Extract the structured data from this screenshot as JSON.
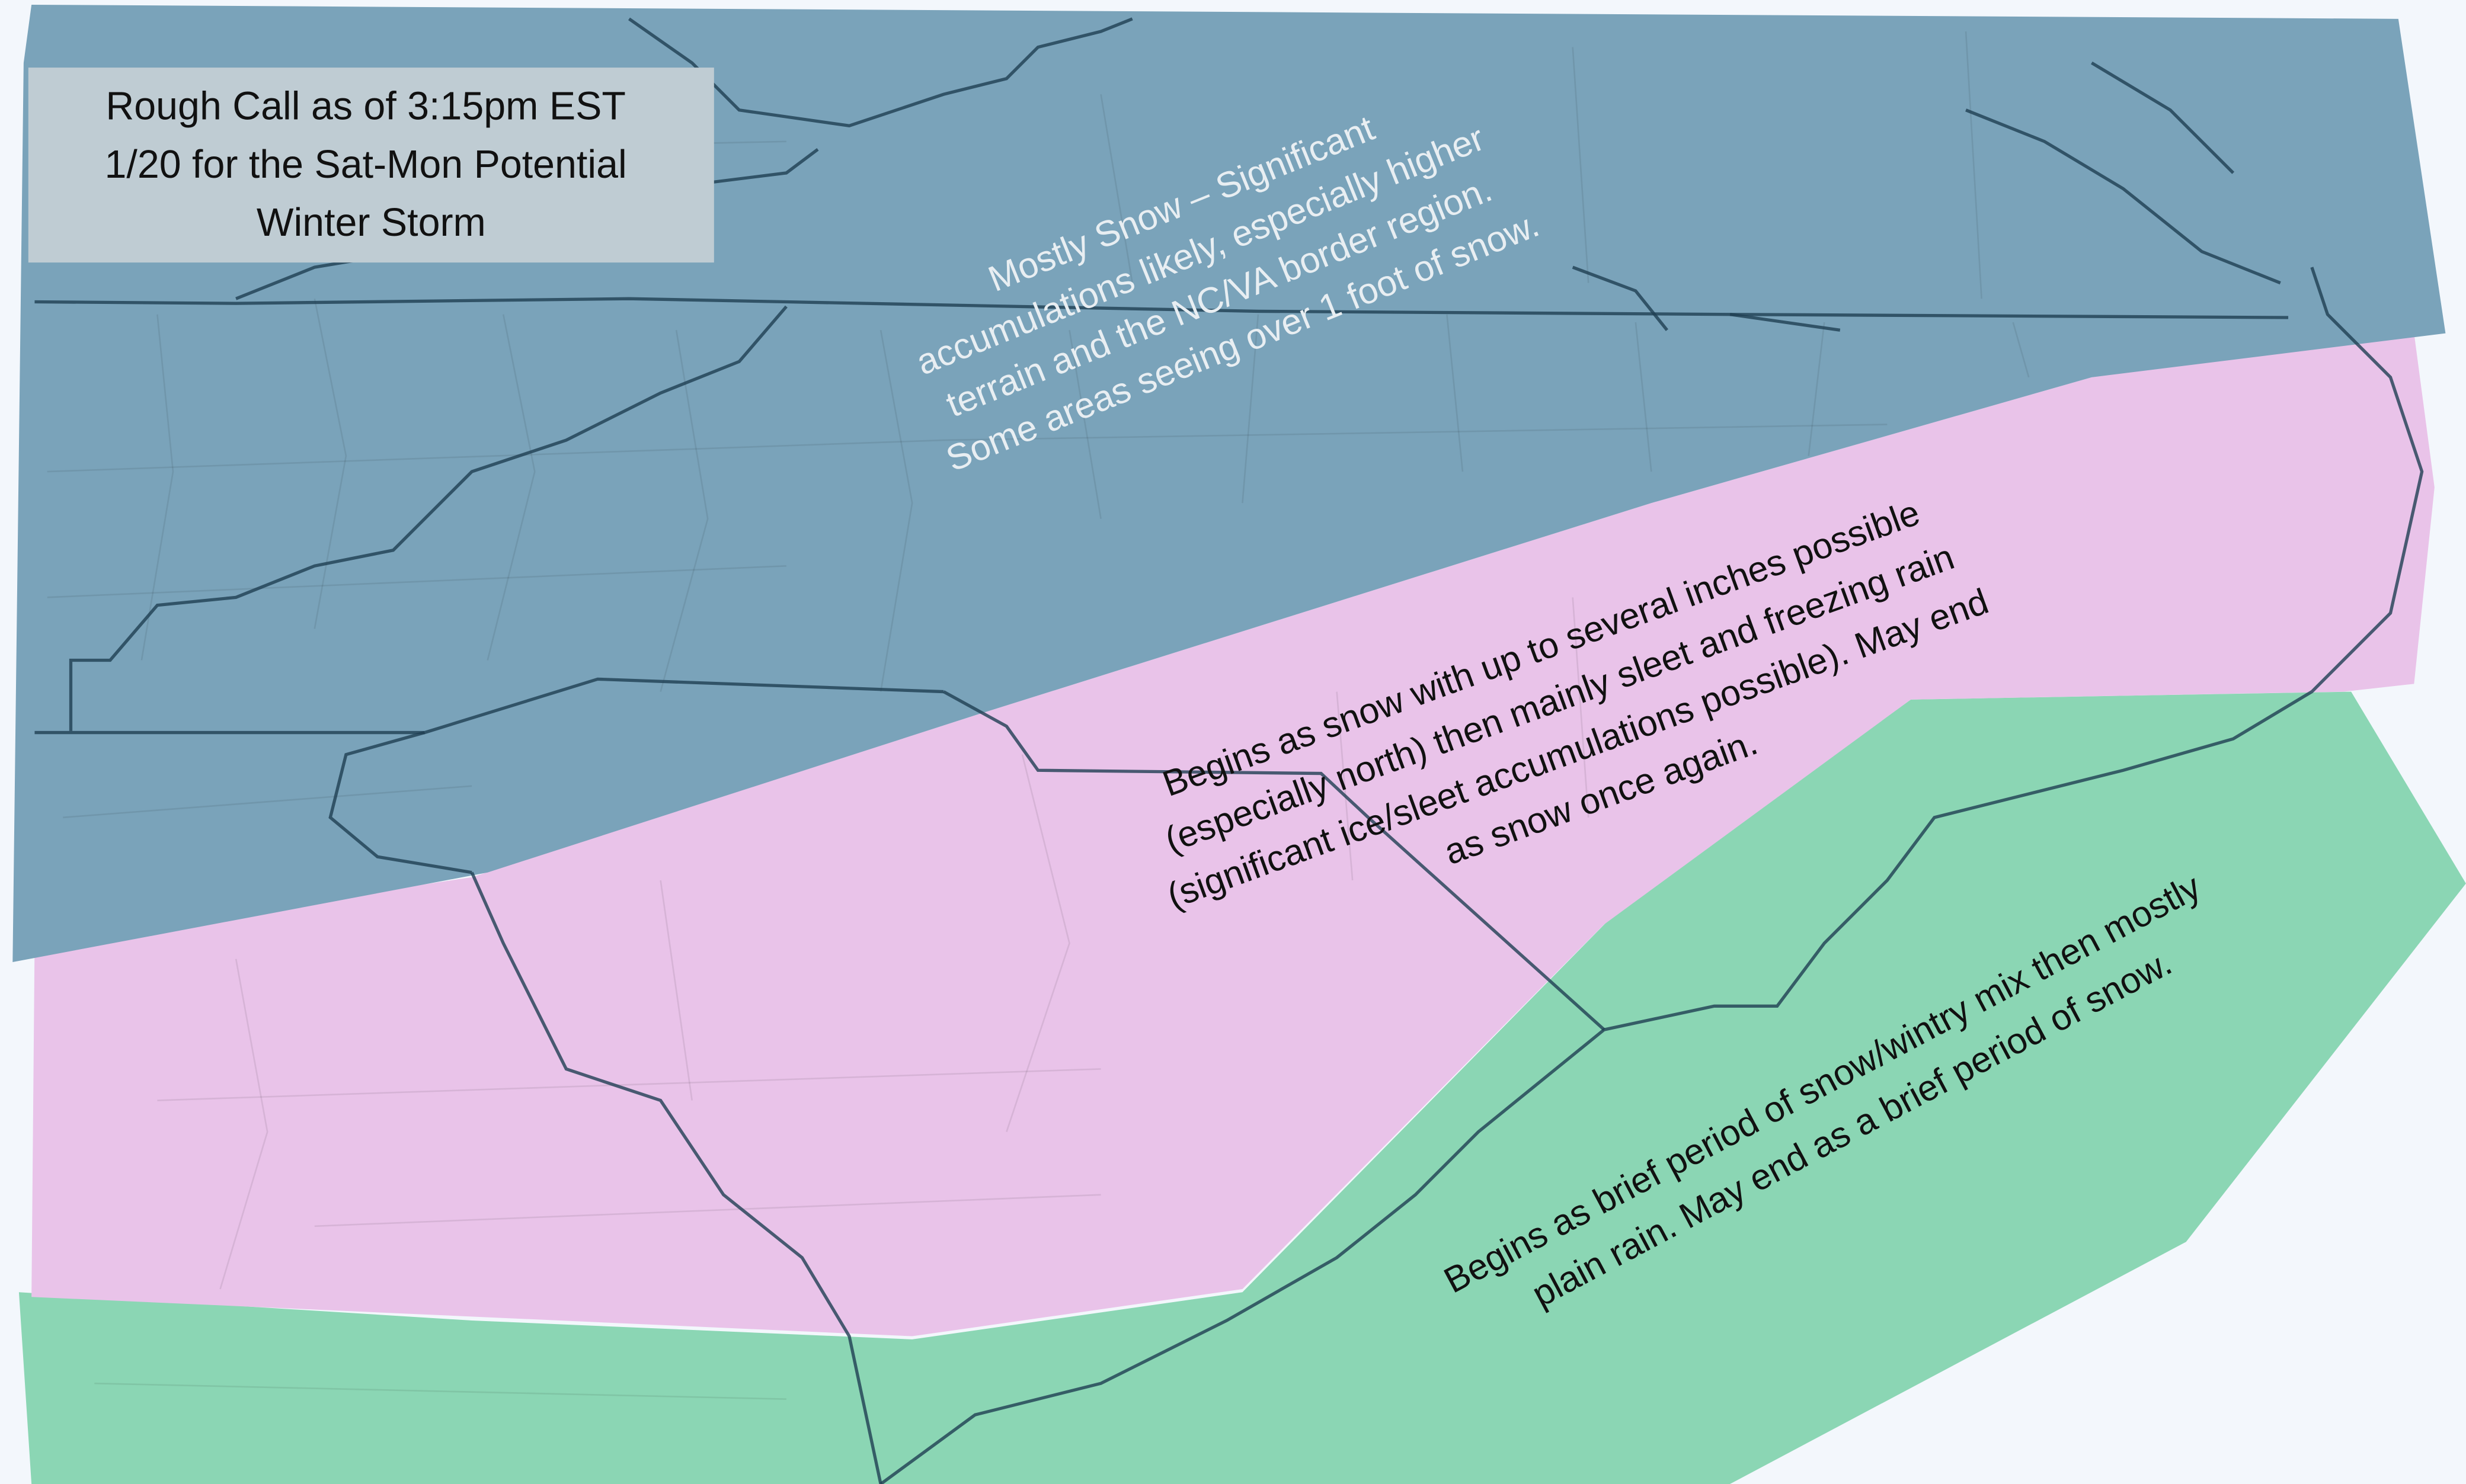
{
  "title_box": {
    "lines": [
      "Rough Call as of 3:15pm EST",
      "1/20 for the Sat-Mon Potential",
      "Winter Storm"
    ]
  },
  "regions": {
    "snow": {
      "lines": [
        "Mostly Snow – Significant",
        "accumulations likely, especially higher",
        "terrain and the NC/VA border region.",
        "Some areas seeing over 1 foot of snow."
      ],
      "color": "#7aa3ba"
    },
    "mix": {
      "lines": [
        "Begins as snow with up to several inches possible",
        "(especially north) then mainly sleet and freezing rain",
        "(significant ice/sleet accumulations possible). May end",
        "as snow once again."
      ],
      "color": "#e9c3e9"
    },
    "rain": {
      "lines": [
        "Begins as brief period of snow/wintry mix then mostly",
        "plain rain. May end as a brief period of snow."
      ],
      "color": "#8bd6b4"
    }
  },
  "colors": {
    "background": "#f3f7fc",
    "title_box": "#bfccd3",
    "border_lines": "#1f3f52"
  }
}
